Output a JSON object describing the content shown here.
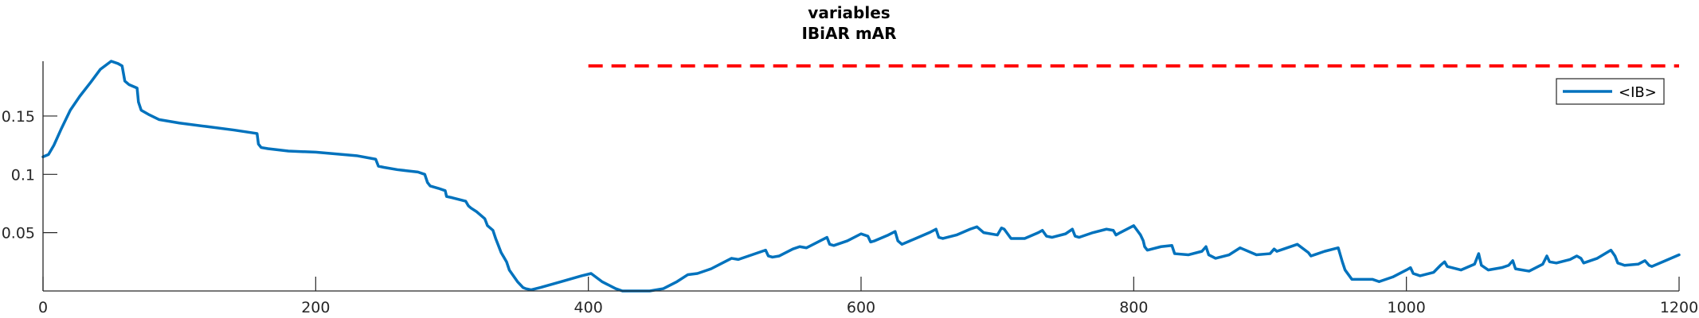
{
  "chart_data": {
    "type": "line",
    "title": [
      "variables",
      "IBiAR mAR"
    ],
    "xlabel": "",
    "ylabel": "",
    "xlim": [
      0,
      1200
    ],
    "ylim": [
      0,
      0.197
    ],
    "xticks": [
      0,
      200,
      400,
      600,
      800,
      1000,
      1200
    ],
    "xtick_labels": [
      "0",
      "200",
      "400",
      "600",
      "800",
      "1000",
      "1200"
    ],
    "yticks": [
      0.05,
      0.1,
      0.15
    ],
    "ytick_labels": [
      "0.05",
      "0.1",
      "0.15"
    ],
    "grid": false,
    "legend": {
      "position": "top-right",
      "entries": [
        "<IB>"
      ]
    },
    "colors": {
      "series": "#0072BD",
      "reference": "#FF0000",
      "axis": "#262626"
    },
    "reference_lines": [
      {
        "style": "dashed",
        "y": 0.193,
        "x": [
          400,
          1200
        ]
      }
    ],
    "series": [
      {
        "name": "<IB>",
        "x": [
          0,
          4,
          8,
          13,
          20,
          27,
          35,
          42,
          50,
          55,
          58,
          60,
          63,
          69,
          70,
          72,
          78,
          85,
          100,
          120,
          140,
          157,
          158,
          160,
          165,
          180,
          200,
          230,
          244,
          246,
          250,
          260,
          275,
          280,
          282,
          284,
          290,
          295,
          296,
          300,
          310,
          312,
          314,
          318,
          320,
          324,
          326,
          330,
          332,
          334,
          336,
          340,
          342,
          348,
          352,
          354,
          358,
          365,
          380,
          395,
          402,
          410,
          420,
          425,
          435,
          445,
          455,
          465,
          473,
          480,
          490,
          500,
          505,
          510,
          520,
          530,
          532,
          535,
          540,
          550,
          555,
          560,
          570,
          575,
          577,
          580,
          590,
          600,
          605,
          607,
          610,
          620,
          625,
          627,
          630,
          640,
          650,
          655,
          657,
          660,
          670,
          680,
          685,
          690,
          700,
          703,
          705,
          710,
          720,
          730,
          733,
          736,
          740,
          750,
          755,
          757,
          760,
          770,
          780,
          785,
          787,
          790,
          800,
          805,
          807,
          808,
          810,
          820,
          828,
          830,
          840,
          850,
          853,
          855,
          860,
          870,
          878,
          880,
          890,
          900,
          903,
          905,
          910,
          920,
          928,
          930,
          940,
          950,
          953,
          955,
          960,
          970,
          975,
          980,
          990,
          1000,
          1003,
          1005,
          1010,
          1020,
          1025,
          1028,
          1030,
          1040,
          1050,
          1053,
          1055,
          1060,
          1070,
          1075,
          1078,
          1080,
          1090,
          1100,
          1103,
          1105,
          1110,
          1120,
          1125,
          1128,
          1130,
          1140,
          1150,
          1153,
          1155,
          1160,
          1170,
          1175,
          1178,
          1180,
          1190,
          1200
        ],
        "values": [
          0.115,
          0.117,
          0.125,
          0.138,
          0.155,
          0.167,
          0.179,
          0.19,
          0.197,
          0.195,
          0.193,
          0.18,
          0.177,
          0.174,
          0.162,
          0.155,
          0.151,
          0.147,
          0.144,
          0.141,
          0.138,
          0.135,
          0.126,
          0.123,
          0.122,
          0.12,
          0.119,
          0.116,
          0.113,
          0.107,
          0.106,
          0.104,
          0.102,
          0.1,
          0.093,
          0.09,
          0.088,
          0.086,
          0.081,
          0.08,
          0.077,
          0.073,
          0.071,
          0.068,
          0.066,
          0.062,
          0.056,
          0.052,
          0.045,
          0.039,
          0.033,
          0.025,
          0.018,
          0.008,
          0.003,
          0.002,
          0.001,
          0.003,
          0.008,
          0.013,
          0.015,
          0.008,
          0.002,
          0.0,
          0.0,
          0.0,
          0.002,
          0.008,
          0.014,
          0.015,
          0.019,
          0.025,
          0.028,
          0.027,
          0.031,
          0.035,
          0.03,
          0.029,
          0.03,
          0.036,
          0.038,
          0.037,
          0.043,
          0.046,
          0.04,
          0.039,
          0.043,
          0.049,
          0.047,
          0.042,
          0.043,
          0.048,
          0.051,
          0.043,
          0.04,
          0.045,
          0.05,
          0.053,
          0.046,
          0.045,
          0.048,
          0.053,
          0.055,
          0.05,
          0.048,
          0.054,
          0.053,
          0.045,
          0.045,
          0.05,
          0.052,
          0.047,
          0.046,
          0.049,
          0.053,
          0.047,
          0.046,
          0.05,
          0.053,
          0.052,
          0.048,
          0.05,
          0.056,
          0.048,
          0.043,
          0.038,
          0.035,
          0.038,
          0.039,
          0.032,
          0.031,
          0.034,
          0.038,
          0.031,
          0.028,
          0.031,
          0.037,
          0.036,
          0.031,
          0.032,
          0.036,
          0.034,
          0.036,
          0.04,
          0.033,
          0.03,
          0.034,
          0.037,
          0.025,
          0.018,
          0.01,
          0.01,
          0.01,
          0.008,
          0.012,
          0.018,
          0.02,
          0.015,
          0.013,
          0.016,
          0.022,
          0.025,
          0.021,
          0.018,
          0.023,
          0.032,
          0.022,
          0.018,
          0.02,
          0.022,
          0.026,
          0.019,
          0.017,
          0.023,
          0.03,
          0.025,
          0.024,
          0.027,
          0.03,
          0.028,
          0.024,
          0.028,
          0.035,
          0.03,
          0.024,
          0.022,
          0.023,
          0.026,
          0.022,
          0.021,
          0.026,
          0.031
        ]
      }
    ]
  }
}
